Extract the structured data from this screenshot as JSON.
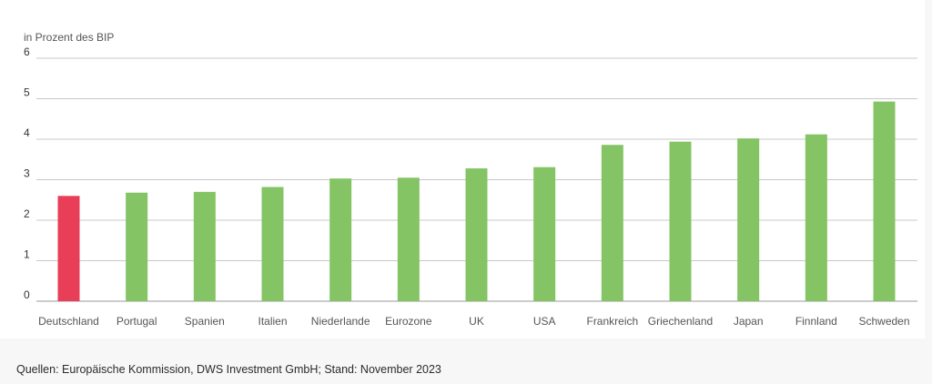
{
  "chart_data": {
    "type": "bar",
    "ylabel": "in Prozent des BIP",
    "ylim": [
      0,
      6
    ],
    "yticks": [
      0,
      1,
      2,
      3,
      4,
      5,
      6
    ],
    "grid": true,
    "categories": [
      "Deutschland",
      "Portugal",
      "Spanien",
      "Italien",
      "Niederlande",
      "Eurozone",
      "UK",
      "USA",
      "Frankreich",
      "Griechenland",
      "Japan",
      "Finnland",
      "Schweden"
    ],
    "values": [
      2.6,
      2.68,
      2.7,
      2.82,
      3.03,
      3.05,
      3.28,
      3.31,
      3.86,
      3.94,
      4.02,
      4.12,
      4.93
    ],
    "highlight_category": "Deutschland",
    "colors": {
      "default": "#84c464",
      "highlight": "#e83e57",
      "grid": "#c8c8c8",
      "axis": "#999999"
    }
  },
  "footer": {
    "source": "Quellen: Europäische Kommission, DWS Investment GmbH; Stand: November 2023"
  }
}
